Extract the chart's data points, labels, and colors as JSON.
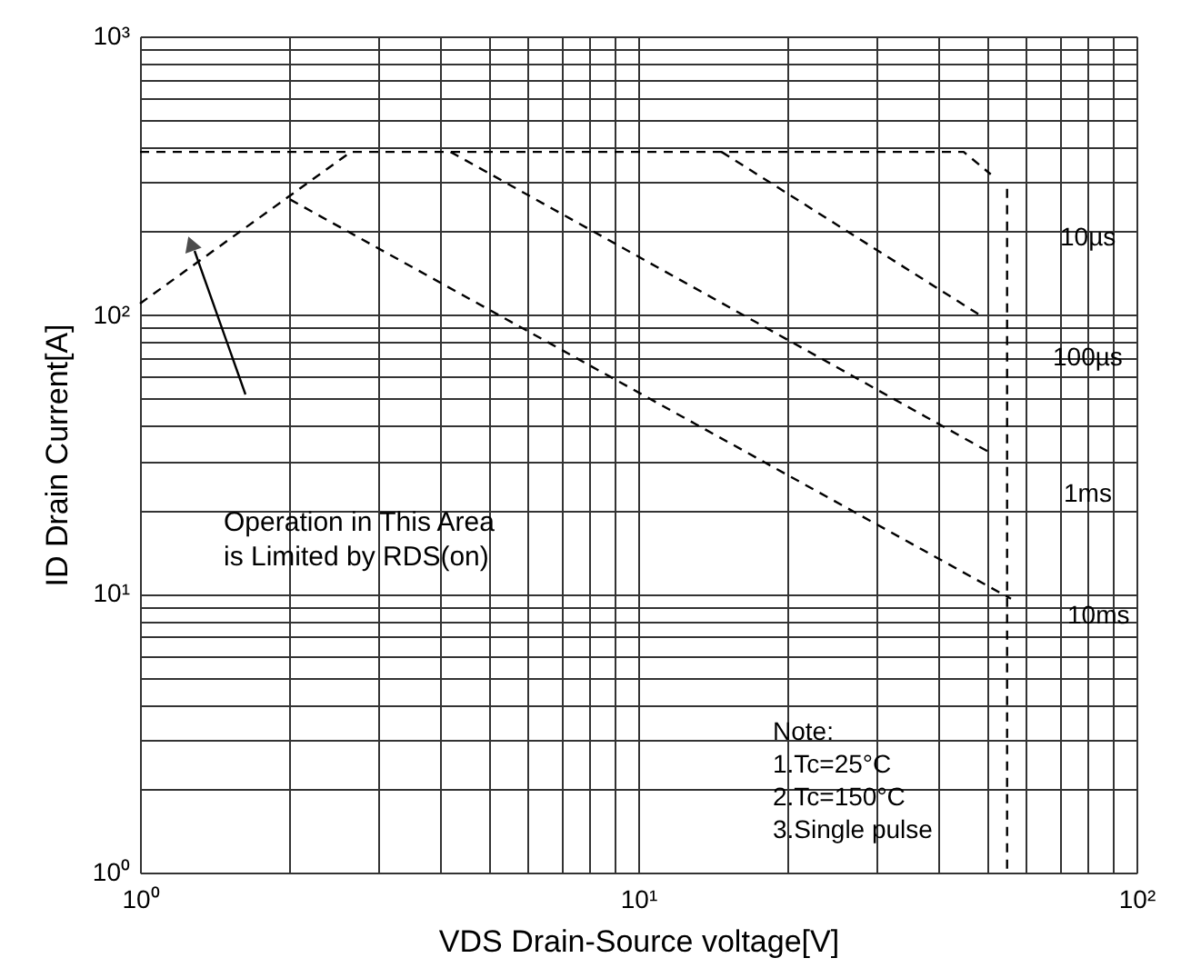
{
  "chart_data": {
    "type": "line",
    "xlabel": "VDS Drain-Source voltage[V]",
    "ylabel": "ID Drain Current[A]",
    "log": "xy",
    "grid": true,
    "legend": false,
    "marker": "none",
    "line_style": "dashed",
    "xlim": [
      1,
      100
    ],
    "ylim": [
      1,
      1000
    ],
    "xticks": [
      {
        "value": 1,
        "label": "10⁰"
      },
      {
        "value": 2,
        "label": null
      },
      {
        "value": 3,
        "label": null
      },
      {
        "value": 4,
        "label": null
      },
      {
        "value": 5,
        "label": null
      },
      {
        "value": 6,
        "label": null
      },
      {
        "value": 7,
        "label": null
      },
      {
        "value": 8,
        "label": null
      },
      {
        "value": 9,
        "label": null
      },
      {
        "value": 10,
        "label": "10¹"
      },
      {
        "value": 20,
        "label": null
      },
      {
        "value": 30,
        "label": null
      },
      {
        "value": 40,
        "label": null
      },
      {
        "value": 50,
        "label": null
      },
      {
        "value": 60,
        "label": null
      },
      {
        "value": 70,
        "label": null
      },
      {
        "value": 80,
        "label": null
      },
      {
        "value": 90,
        "label": null
      },
      {
        "value": 100,
        "label": "10²"
      }
    ],
    "yticks": [
      {
        "value": 1,
        "label": "10⁰"
      },
      {
        "value": 2,
        "label": null
      },
      {
        "value": 3,
        "label": null
      },
      {
        "value": 4,
        "label": null
      },
      {
        "value": 5,
        "label": null
      },
      {
        "value": 6,
        "label": null
      },
      {
        "value": 7,
        "label": null
      },
      {
        "value": 8,
        "label": null
      },
      {
        "value": 9,
        "label": null
      },
      {
        "value": 10,
        "label": "10¹"
      },
      {
        "value": 20,
        "label": null
      },
      {
        "value": 30,
        "label": null
      },
      {
        "value": 40,
        "label": null
      },
      {
        "value": 50,
        "label": null
      },
      {
        "value": 60,
        "label": null
      },
      {
        "value": 70,
        "label": null
      },
      {
        "value": 80,
        "label": null
      },
      {
        "value": 90,
        "label": null
      },
      {
        "value": 100,
        "label": "10²"
      },
      {
        "value": 200,
        "label": null
      },
      {
        "value": 300,
        "label": null
      },
      {
        "value": 400,
        "label": null
      },
      {
        "value": 500,
        "label": null
      },
      {
        "value": 600,
        "label": null
      },
      {
        "value": 700,
        "label": null
      },
      {
        "value": 800,
        "label": null
      },
      {
        "value": 900,
        "label": null
      },
      {
        "value": 1000,
        "label": "10³"
      }
    ],
    "series": [
      {
        "color": "#000000",
        "x": [
          1,
          2.65
        ],
        "values": [
          110,
          385
        ]
      },
      {
        "color": "#000000",
        "x": [
          1,
          45,
          51
        ],
        "values": [
          385,
          385,
          320
        ]
      },
      {
        "color": "#000000",
        "x": [
          14.7,
          48.5
        ],
        "values": [
          385,
          100
        ]
      },
      {
        "color": "#000000",
        "x": [
          4.2,
          51
        ],
        "values": [
          385,
          32
        ]
      },
      {
        "color": "#000000",
        "x": [
          2,
          56
        ],
        "values": [
          260,
          9.6
        ]
      },
      {
        "color": "#000000",
        "x": [
          55,
          55
        ],
        "values": [
          284,
          1
        ]
      }
    ],
    "annotations": [
      "Operation in This Area\nis Limited by RDS(on)",
      "Note:\n1.Tc=25°C\n2.Tc=150°C\n3.Single pulse",
      "10µs",
      "100µs",
      "1ms",
      "10ms"
    ]
  }
}
